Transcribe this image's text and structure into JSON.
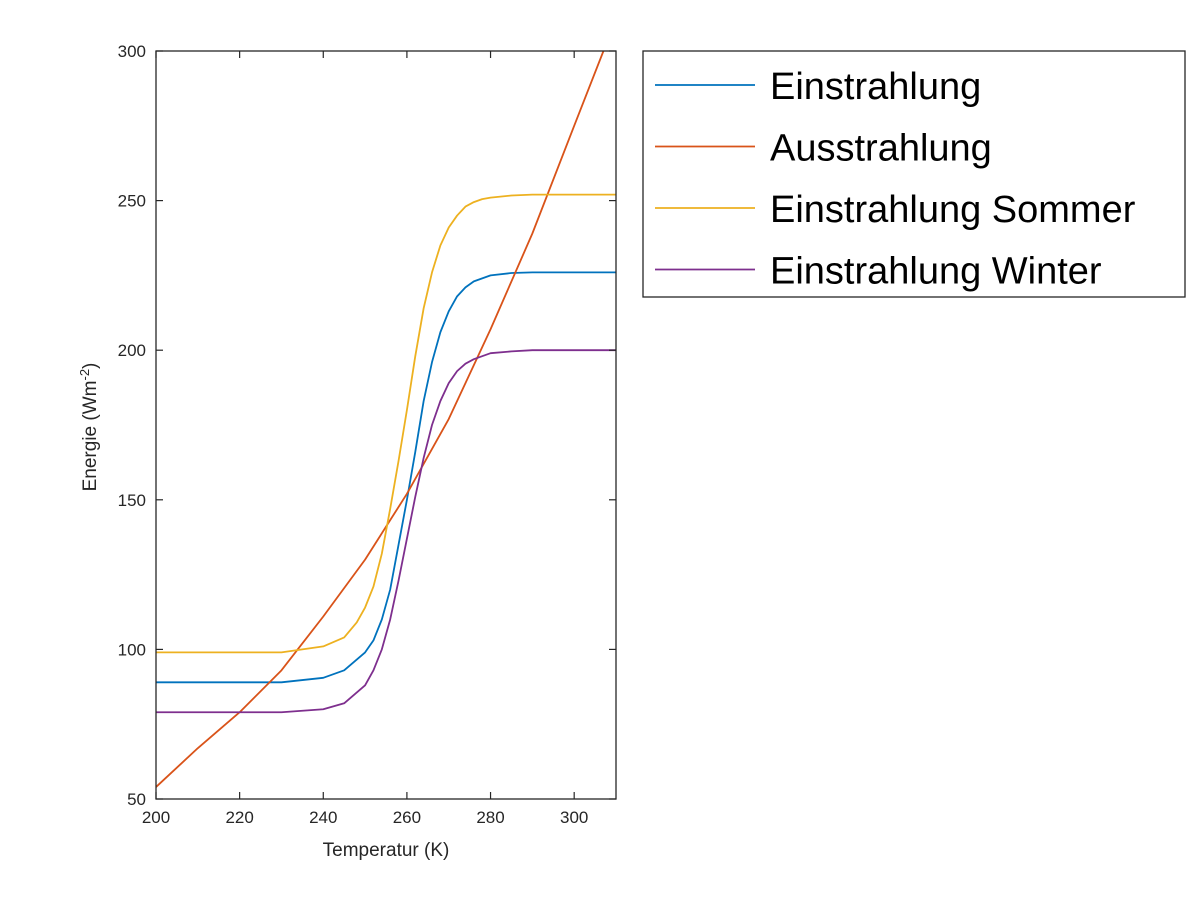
{
  "chart_data": {
    "type": "line",
    "title": "",
    "xlabel": "Temperatur (K)",
    "ylabel_main": "Energie (Wm",
    "ylabel_sup": "-2",
    "ylabel_tail": ")",
    "xlim": [
      200,
      310
    ],
    "ylim": [
      50,
      300
    ],
    "xticks": [
      "200",
      "220",
      "240",
      "260",
      "280",
      "300"
    ],
    "yticks": [
      "50",
      "100",
      "150",
      "200",
      "250",
      "300"
    ],
    "grid": false,
    "legend_position": "outside-right-top",
    "series": [
      {
        "name": "Einstrahlung",
        "color": "#0072BD",
        "x": [
          200,
          210,
          220,
          230,
          240,
          245,
          250,
          252,
          254,
          256,
          258,
          260,
          262,
          264,
          266,
          268,
          270,
          272,
          274,
          276,
          278,
          280,
          285,
          290,
          300,
          310
        ],
        "y": [
          89,
          89,
          89,
          89,
          90.5,
          93,
          99,
          103,
          110,
          120,
          135,
          150,
          166,
          183,
          196,
          206,
          213,
          218,
          221,
          223,
          224,
          225,
          225.8,
          226,
          226,
          226
        ]
      },
      {
        "name": "Ausstrahlung",
        "color": "#D95319",
        "x": [
          200,
          210,
          220,
          230,
          240,
          250,
          260,
          270,
          280,
          290,
          300,
          307
        ],
        "y": [
          54,
          67,
          79,
          93,
          111,
          130,
          152,
          177,
          207,
          239,
          275,
          300
        ]
      },
      {
        "name": "Einstrahlung Sommer",
        "color": "#EDB120",
        "x": [
          200,
          210,
          220,
          230,
          240,
          245,
          248,
          250,
          252,
          254,
          256,
          258,
          260,
          262,
          264,
          266,
          268,
          270,
          272,
          274,
          276,
          278,
          280,
          285,
          290,
          300,
          310
        ],
        "y": [
          99,
          99,
          99,
          99,
          101,
          104,
          109,
          114,
          121,
          132,
          147,
          163,
          180,
          198,
          214,
          226,
          235,
          241,
          245,
          248,
          249.5,
          250.5,
          251,
          251.7,
          252,
          252,
          252
        ]
      },
      {
        "name": "Einstrahlung Winter",
        "color": "#7E2F8E",
        "x": [
          200,
          210,
          220,
          230,
          240,
          245,
          250,
          252,
          254,
          256,
          258,
          260,
          262,
          264,
          266,
          268,
          270,
          272,
          274,
          276,
          278,
          280,
          285,
          290,
          300,
          310
        ],
        "y": [
          79,
          79,
          79,
          79,
          80,
          82,
          88,
          93,
          100,
          110,
          123,
          137,
          151,
          164,
          175,
          183,
          189,
          193,
          195.5,
          197,
          198,
          199,
          199.6,
          200,
          200,
          200
        ]
      }
    ]
  }
}
